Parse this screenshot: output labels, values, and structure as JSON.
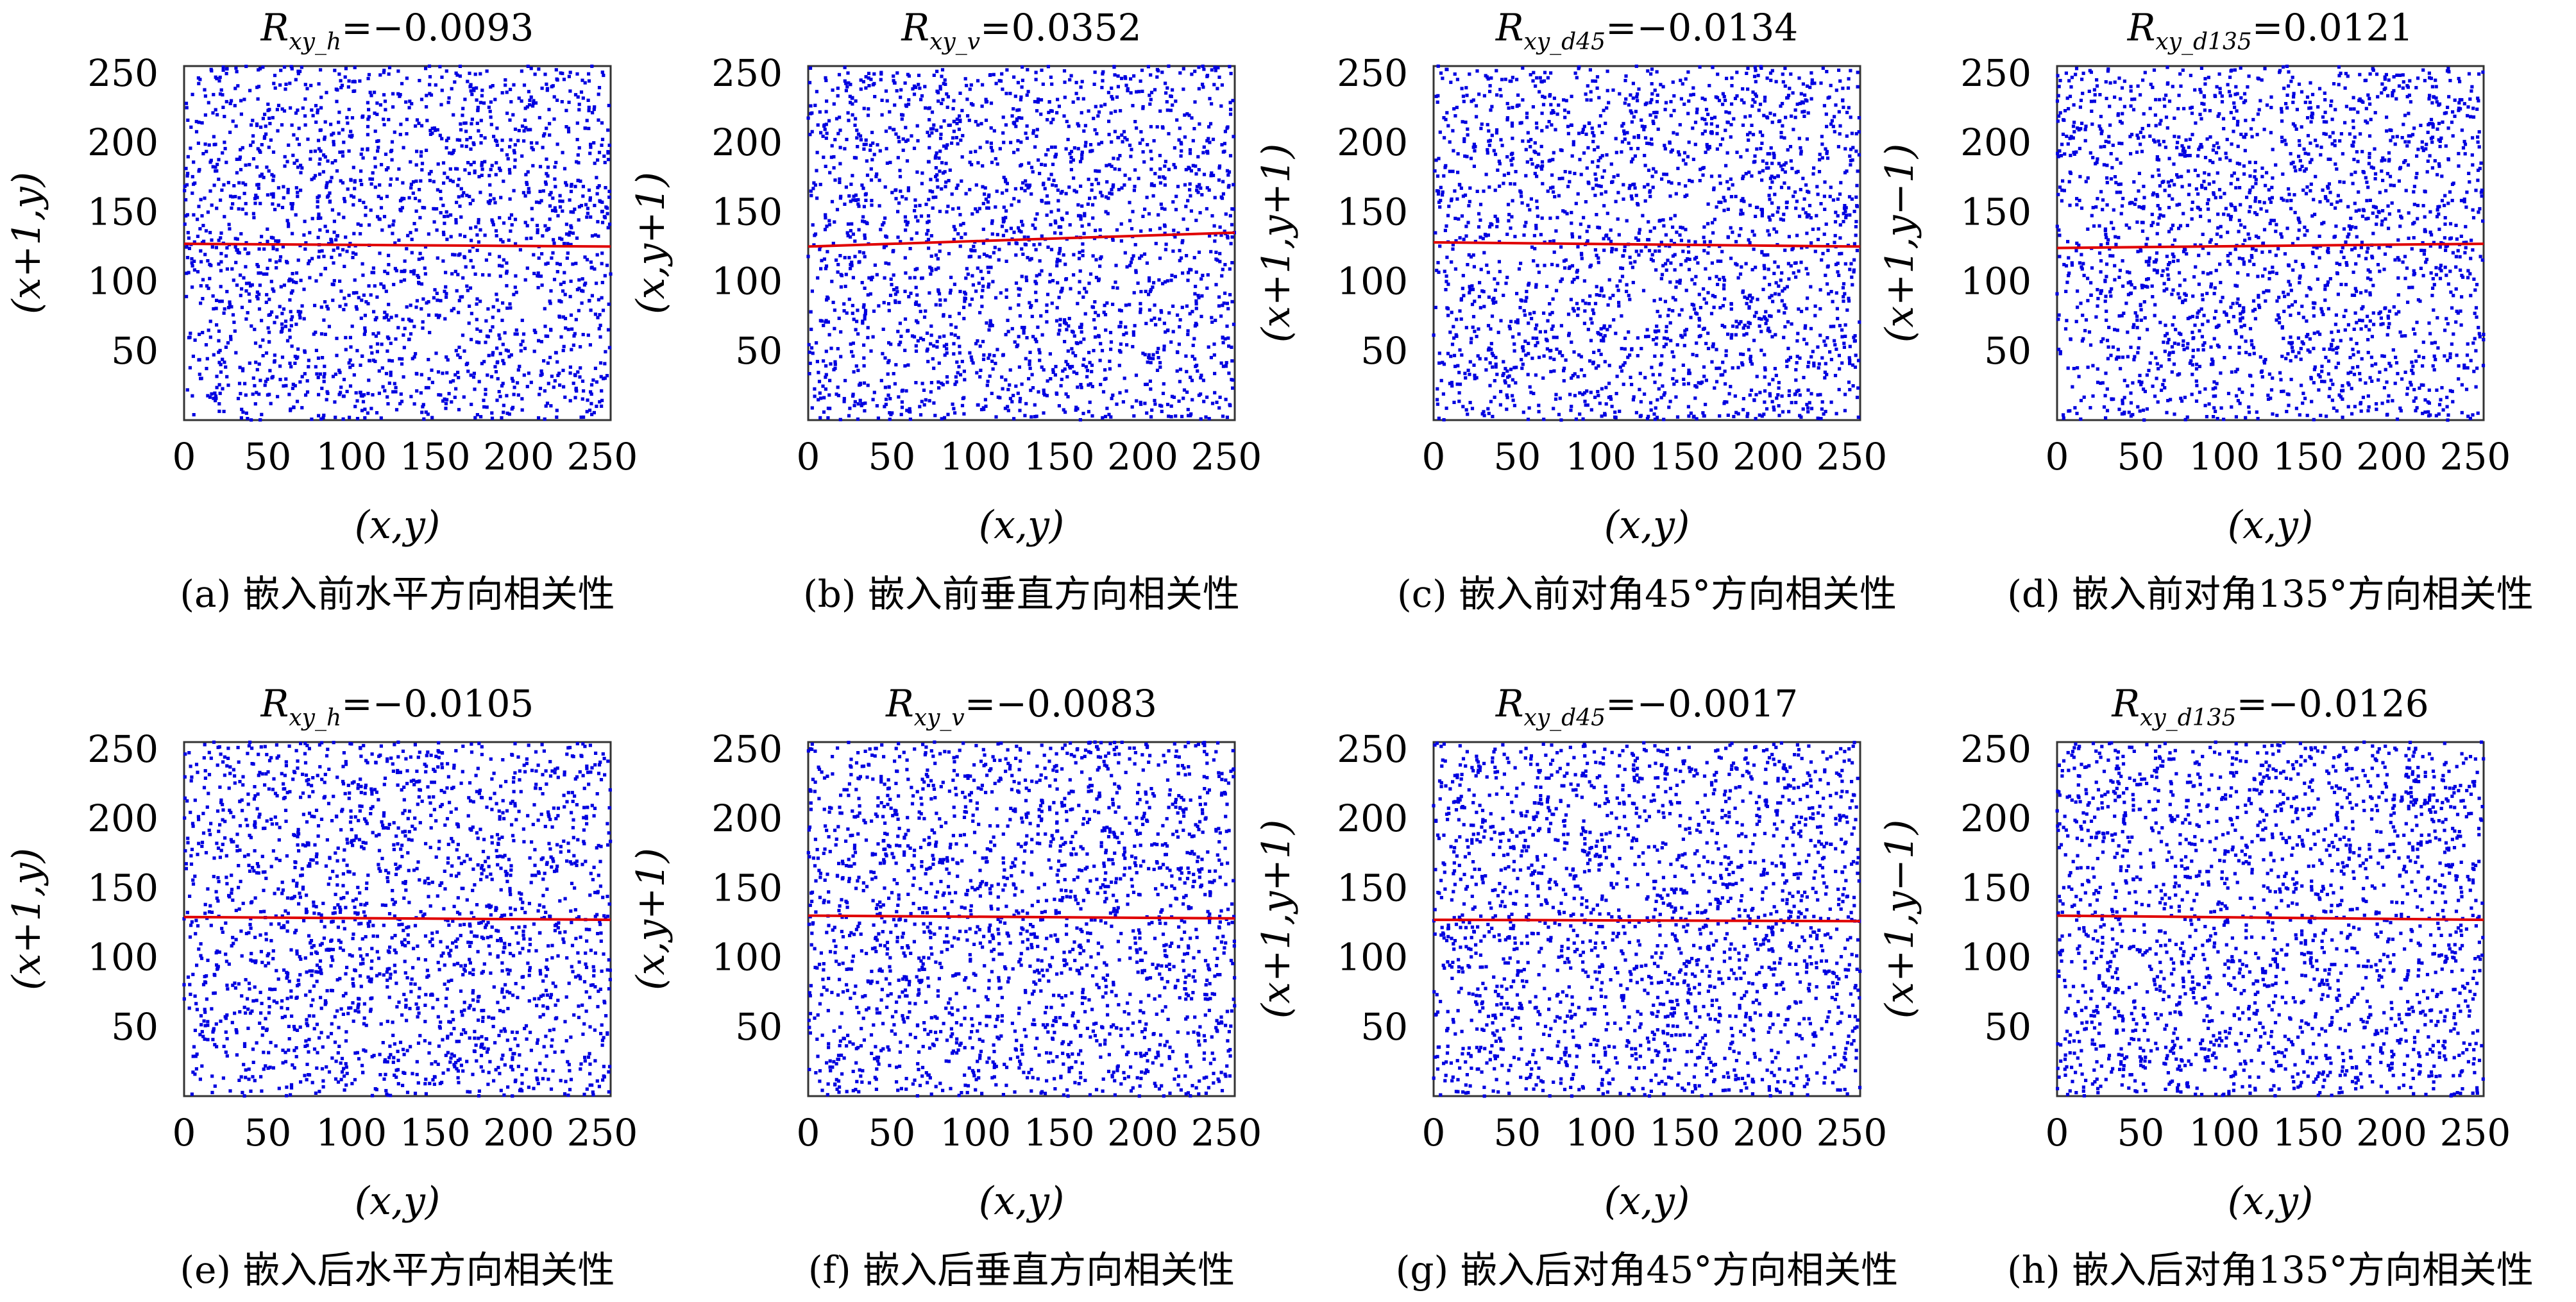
{
  "figure": {
    "colors": {
      "points": "#0000e0",
      "fit_line": "#e00000",
      "frame": "#333333"
    }
  },
  "chart_data": [
    {
      "id": "a",
      "type": "scatter",
      "title": {
        "main": "R",
        "sub": "xy_h",
        "value": "=−0.0093"
      },
      "xlabel": "(x,y)",
      "ylabel": "(x+1,y)",
      "caption": "(a) 嵌入前水平方向相关性",
      "xlim": [
        0,
        255
      ],
      "ylim": [
        0,
        255
      ],
      "xticks": [
        0,
        50,
        100,
        150,
        200,
        250
      ],
      "yticks": [
        50,
        100,
        150,
        200,
        250
      ],
      "point_count": 2000,
      "correlation": -0.0093,
      "fit_line": [
        127,
        125
      ]
    },
    {
      "id": "b",
      "type": "scatter",
      "title": {
        "main": "R",
        "sub": "xy_v",
        "value": "=0.0352"
      },
      "xlabel": "(x,y)",
      "ylabel": "(x,y+1)",
      "caption": "(b) 嵌入前垂直方向相关性",
      "xlim": [
        0,
        255
      ],
      "ylim": [
        0,
        255
      ],
      "xticks": [
        0,
        50,
        100,
        150,
        200,
        250
      ],
      "yticks": [
        50,
        100,
        150,
        200,
        250
      ],
      "point_count": 2000,
      "correlation": 0.0352,
      "fit_line": [
        125,
        135
      ]
    },
    {
      "id": "c",
      "type": "scatter",
      "title": {
        "main": "R",
        "sub": "xy_d45",
        "value": "=−0.0134"
      },
      "xlabel": "(x,y)",
      "ylabel": "(x+1,y+1)",
      "caption": "(c) 嵌入前对角45°方向相关性",
      "xlim": [
        0,
        255
      ],
      "ylim": [
        0,
        255
      ],
      "xticks": [
        0,
        50,
        100,
        150,
        200,
        250
      ],
      "yticks": [
        50,
        100,
        150,
        200,
        250
      ],
      "point_count": 2000,
      "correlation": -0.0134,
      "fit_line": [
        128,
        125
      ]
    },
    {
      "id": "d",
      "type": "scatter",
      "title": {
        "main": "R",
        "sub": "xy_d135",
        "value": "=0.0121"
      },
      "xlabel": "(x,y)",
      "ylabel": "(x+1,y−1)",
      "caption": "(d) 嵌入前对角135°方向相关性",
      "xlim": [
        0,
        255
      ],
      "ylim": [
        0,
        255
      ],
      "xticks": [
        0,
        50,
        100,
        150,
        200,
        250
      ],
      "yticks": [
        50,
        100,
        150,
        200,
        250
      ],
      "point_count": 2000,
      "correlation": 0.0121,
      "fit_line": [
        124,
        127
      ]
    },
    {
      "id": "e",
      "type": "scatter",
      "title": {
        "main": "R",
        "sub": "xy_h",
        "value": "=−0.0105"
      },
      "xlabel": "(x,y)",
      "ylabel": "(x+1,y)",
      "caption": "(e) 嵌入后水平方向相关性",
      "xlim": [
        0,
        255
      ],
      "ylim": [
        0,
        255
      ],
      "xticks": [
        0,
        50,
        100,
        150,
        200,
        250
      ],
      "yticks": [
        50,
        100,
        150,
        200,
        250
      ],
      "point_count": 2000,
      "correlation": -0.0105,
      "fit_line": [
        129,
        127
      ]
    },
    {
      "id": "f",
      "type": "scatter",
      "title": {
        "main": "R",
        "sub": "xy_v",
        "value": "=−0.0083"
      },
      "xlabel": "(x,y)",
      "ylabel": "(x,y+1)",
      "caption": "(f) 嵌入后垂直方向相关性",
      "xlim": [
        0,
        255
      ],
      "ylim": [
        0,
        255
      ],
      "xticks": [
        0,
        50,
        100,
        150,
        200,
        250
      ],
      "yticks": [
        50,
        100,
        150,
        200,
        250
      ],
      "point_count": 2000,
      "correlation": -0.0083,
      "fit_line": [
        130,
        128
      ]
    },
    {
      "id": "g",
      "type": "scatter",
      "title": {
        "main": "R",
        "sub": "xy_d45",
        "value": "=−0.0017"
      },
      "xlabel": "(x,y)",
      "ylabel": "(x+1,y+1)",
      "caption": "(g) 嵌入后对角45°方向相关性",
      "xlim": [
        0,
        255
      ],
      "ylim": [
        0,
        255
      ],
      "xticks": [
        0,
        50,
        100,
        150,
        200,
        250
      ],
      "yticks": [
        50,
        100,
        150,
        200,
        250
      ],
      "point_count": 2000,
      "correlation": -0.0017,
      "fit_line": [
        127,
        126
      ]
    },
    {
      "id": "h",
      "type": "scatter",
      "title": {
        "main": "R",
        "sub": "xy_d135",
        "value": "=−0.0126"
      },
      "xlabel": "(x,y)",
      "ylabel": "(x+1,y−1)",
      "caption": "(h) 嵌入后对角135°方向相关性",
      "xlim": [
        0,
        255
      ],
      "ylim": [
        0,
        255
      ],
      "xticks": [
        0,
        50,
        100,
        150,
        200,
        250
      ],
      "yticks": [
        50,
        100,
        150,
        200,
        250
      ],
      "point_count": 2000,
      "correlation": -0.0126,
      "fit_line": [
        130,
        127
      ]
    }
  ]
}
